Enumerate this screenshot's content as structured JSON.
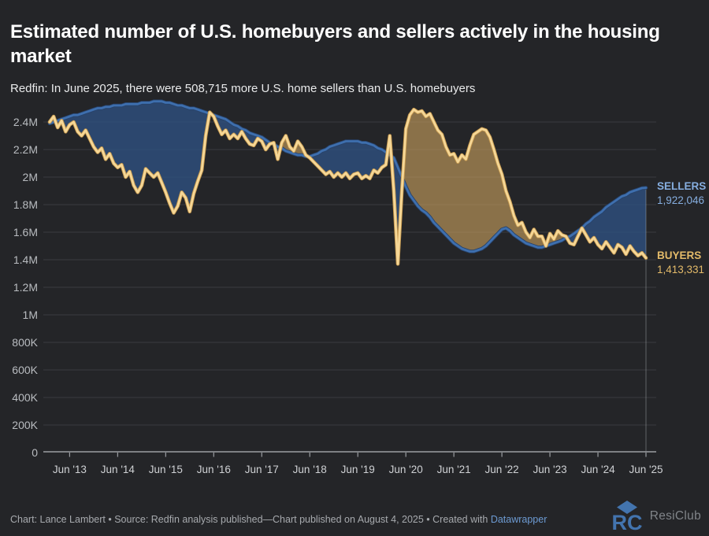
{
  "title": "Estimated number of U.S. homebuyers and sellers actively in the housing market",
  "subtitle": "Redfin: In June 2025, there were 508,715 more U.S. home sellers than U.S. homebuyers",
  "annotations": {
    "sellers": {
      "label": "SELLERS",
      "value": "1,922,046",
      "color": "#86aee0"
    },
    "buyers": {
      "label": "BUYERS",
      "value": "1,413,331",
      "color": "#e3ba69"
    }
  },
  "footer": {
    "credit_text": "Chart: Lance Lambert • Source: Redfin analysis published—Chart published on August 4, 2025 • Created with ",
    "link_label": "Datawrapper",
    "brand": "ResiClub"
  },
  "chart_data": {
    "type": "line",
    "subtype": "difference-area",
    "unit": "millions of people",
    "x_monthly_start": "Jan 2013",
    "x_monthly_end": "Jun 2025",
    "x_tick_labels": [
      "Jun '13",
      "Jun '14",
      "Jun '15",
      "Jun '16",
      "Jun '17",
      "Jun '18",
      "Jun '19",
      "Jun '20",
      "Jun '21",
      "Jun '22",
      "Jun '23",
      "Jun '24",
      "Jun '25"
    ],
    "x_tick_month_index": [
      5,
      17,
      29,
      41,
      53,
      65,
      77,
      89,
      101,
      113,
      125,
      137,
      149
    ],
    "ylim": [
      0,
      2.6
    ],
    "y_tick_values": [
      0,
      0.2,
      0.4,
      0.6,
      0.8,
      1.0,
      1.2,
      1.4,
      1.6,
      1.8,
      2.0,
      2.2,
      2.4
    ],
    "y_tick_labels": [
      "0",
      "200K",
      "400K",
      "600K",
      "800K",
      "1M",
      "1.2M",
      "1.4M",
      "1.6M",
      "1.8M",
      "2M",
      "2.2M",
      "2.4M"
    ],
    "grid": "horizontal",
    "legend_position": "right-end-labels",
    "highlight_x_label": "Jun '25",
    "series": [
      {
        "name": "SELLERS",
        "line_color": "#3e6fae",
        "fill_color": "#2e4f7e",
        "end_value_label": "1,922,046",
        "values": [
          2.39,
          2.4,
          2.41,
          2.42,
          2.43,
          2.44,
          2.45,
          2.45,
          2.46,
          2.47,
          2.48,
          2.49,
          2.5,
          2.5,
          2.51,
          2.51,
          2.52,
          2.52,
          2.52,
          2.53,
          2.53,
          2.53,
          2.53,
          2.54,
          2.54,
          2.54,
          2.55,
          2.55,
          2.55,
          2.54,
          2.54,
          2.53,
          2.52,
          2.52,
          2.51,
          2.5,
          2.5,
          2.49,
          2.48,
          2.47,
          2.46,
          2.45,
          2.44,
          2.43,
          2.42,
          2.4,
          2.38,
          2.37,
          2.35,
          2.34,
          2.32,
          2.31,
          2.3,
          2.29,
          2.27,
          2.25,
          2.24,
          2.22,
          2.21,
          2.19,
          2.18,
          2.17,
          2.16,
          2.16,
          2.15,
          2.15,
          2.16,
          2.17,
          2.19,
          2.2,
          2.22,
          2.23,
          2.24,
          2.25,
          2.26,
          2.26,
          2.26,
          2.26,
          2.25,
          2.25,
          2.24,
          2.23,
          2.21,
          2.2,
          2.18,
          2.16,
          2.14,
          2.07,
          2.0,
          1.93,
          1.87,
          1.83,
          1.79,
          1.76,
          1.74,
          1.71,
          1.67,
          1.64,
          1.61,
          1.58,
          1.55,
          1.52,
          1.5,
          1.48,
          1.47,
          1.46,
          1.46,
          1.47,
          1.48,
          1.5,
          1.53,
          1.56,
          1.59,
          1.62,
          1.63,
          1.61,
          1.58,
          1.56,
          1.54,
          1.52,
          1.51,
          1.5,
          1.49,
          1.49,
          1.5,
          1.51,
          1.52,
          1.53,
          1.54,
          1.56,
          1.57,
          1.59,
          1.61,
          1.63,
          1.66,
          1.68,
          1.71,
          1.73,
          1.75,
          1.78,
          1.8,
          1.82,
          1.84,
          1.86,
          1.87,
          1.89,
          1.9,
          1.91,
          1.92,
          1.922046
        ]
      },
      {
        "name": "BUYERS",
        "line_color": "#f6d796",
        "fill_color": "#caa05e",
        "end_value_label": "1,413,331",
        "values": [
          2.4,
          2.44,
          2.36,
          2.41,
          2.33,
          2.38,
          2.4,
          2.33,
          2.3,
          2.34,
          2.28,
          2.22,
          2.18,
          2.21,
          2.13,
          2.17,
          2.1,
          2.07,
          2.09,
          2.0,
          2.04,
          1.94,
          1.89,
          1.94,
          2.06,
          2.03,
          2.0,
          2.03,
          1.96,
          1.89,
          1.81,
          1.74,
          1.79,
          1.89,
          1.85,
          1.75,
          1.88,
          1.97,
          2.05,
          2.3,
          2.47,
          2.44,
          2.37,
          2.31,
          2.34,
          2.28,
          2.31,
          2.28,
          2.33,
          2.28,
          2.24,
          2.23,
          2.28,
          2.26,
          2.2,
          2.24,
          2.25,
          2.13,
          2.25,
          2.3,
          2.22,
          2.19,
          2.26,
          2.22,
          2.16,
          2.14,
          2.11,
          2.08,
          2.05,
          2.02,
          2.04,
          2.0,
          2.03,
          2.0,
          2.03,
          1.99,
          2.02,
          2.03,
          1.99,
          2.01,
          1.99,
          2.05,
          2.03,
          2.07,
          2.09,
          2.3,
          1.9,
          1.37,
          1.9,
          2.35,
          2.45,
          2.49,
          2.47,
          2.48,
          2.44,
          2.46,
          2.4,
          2.34,
          2.31,
          2.22,
          2.16,
          2.17,
          2.11,
          2.16,
          2.13,
          2.23,
          2.31,
          2.33,
          2.35,
          2.34,
          2.29,
          2.2,
          2.1,
          2.02,
          1.9,
          1.82,
          1.72,
          1.65,
          1.67,
          1.6,
          1.56,
          1.62,
          1.57,
          1.57,
          1.5,
          1.59,
          1.55,
          1.61,
          1.58,
          1.57,
          1.52,
          1.51,
          1.57,
          1.63,
          1.58,
          1.53,
          1.56,
          1.51,
          1.48,
          1.53,
          1.49,
          1.45,
          1.51,
          1.49,
          1.44,
          1.5,
          1.46,
          1.43,
          1.45,
          1.413331
        ]
      }
    ]
  }
}
